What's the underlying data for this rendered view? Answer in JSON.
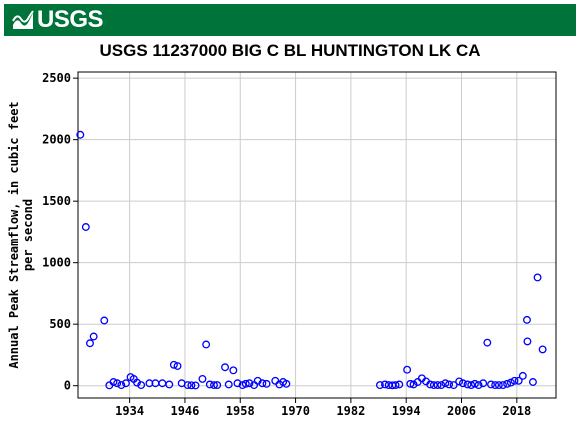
{
  "logo": {
    "text": "USGS"
  },
  "colors": {
    "banner": "#00733a",
    "marker": "#0000ff",
    "grid": "#cccccc"
  },
  "chart_data": {
    "type": "scatter",
    "title": "USGS 11237000 BIG C BL HUNTINGTON LK CA",
    "ylabel_line1": "Annual Peak Streamflow, in cubic feet",
    "ylabel_line2": "per second",
    "xlabel": "",
    "xlim": [
      1922.8,
      2026.5
    ],
    "ylim": [
      -100,
      2550
    ],
    "xticks": [
      1934,
      1946,
      1958,
      1970,
      1982,
      1994,
      2006,
      2018
    ],
    "xtick_labels": [
      "1934",
      "1946",
      "1958",
      "1970",
      "1982",
      "1994",
      "2006",
      "2018"
    ],
    "yticks": [
      0,
      500,
      1000,
      1500,
      2000,
      2500
    ],
    "ytick_labels": [
      "0",
      "500",
      "1000",
      "1500",
      "2000",
      "2500"
    ],
    "grid": true,
    "marker": "open-circle",
    "points": [
      {
        "x": 1923.3,
        "y": 2040
      },
      {
        "x": 1924.5,
        "y": 1290
      },
      {
        "x": 1925.4,
        "y": 345
      },
      {
        "x": 1926.2,
        "y": 400
      },
      {
        "x": 1928.5,
        "y": 530
      },
      {
        "x": 1929.6,
        "y": 3
      },
      {
        "x": 1930.5,
        "y": 30
      },
      {
        "x": 1931.3,
        "y": 20
      },
      {
        "x": 1932.2,
        "y": 5
      },
      {
        "x": 1933.2,
        "y": 20
      },
      {
        "x": 1934.2,
        "y": 70
      },
      {
        "x": 1934.9,
        "y": 55
      },
      {
        "x": 1935.6,
        "y": 25
      },
      {
        "x": 1936.5,
        "y": 5
      },
      {
        "x": 1938.3,
        "y": 20
      },
      {
        "x": 1939.6,
        "y": 20
      },
      {
        "x": 1941.1,
        "y": 20
      },
      {
        "x": 1942.6,
        "y": 10
      },
      {
        "x": 1943.6,
        "y": 170
      },
      {
        "x": 1944.4,
        "y": 160
      },
      {
        "x": 1945.3,
        "y": 20
      },
      {
        "x": 1946.6,
        "y": 5
      },
      {
        "x": 1947.4,
        "y": 3
      },
      {
        "x": 1948.3,
        "y": 2
      },
      {
        "x": 1949.8,
        "y": 55
      },
      {
        "x": 1950.6,
        "y": 335
      },
      {
        "x": 1951.4,
        "y": 10
      },
      {
        "x": 1952.3,
        "y": 5
      },
      {
        "x": 1953.0,
        "y": 5
      },
      {
        "x": 1954.7,
        "y": 150
      },
      {
        "x": 1955.5,
        "y": 10
      },
      {
        "x": 1956.5,
        "y": 125
      },
      {
        "x": 1957.4,
        "y": 20
      },
      {
        "x": 1958.5,
        "y": 5
      },
      {
        "x": 1959.2,
        "y": 15
      },
      {
        "x": 1960.0,
        "y": 20
      },
      {
        "x": 1961.0,
        "y": 5
      },
      {
        "x": 1961.8,
        "y": 40
      },
      {
        "x": 1962.8,
        "y": 20
      },
      {
        "x": 1963.7,
        "y": 15
      },
      {
        "x": 1965.6,
        "y": 40
      },
      {
        "x": 1966.5,
        "y": 10
      },
      {
        "x": 1967.3,
        "y": 30
      },
      {
        "x": 1968.0,
        "y": 15
      },
      {
        "x": 1988.3,
        "y": 5
      },
      {
        "x": 1989.4,
        "y": 10
      },
      {
        "x": 1990.2,
        "y": 5
      },
      {
        "x": 1991.0,
        "y": 3
      },
      {
        "x": 1991.7,
        "y": 5
      },
      {
        "x": 1992.5,
        "y": 10
      },
      {
        "x": 1994.2,
        "y": 130
      },
      {
        "x": 1994.9,
        "y": 15
      },
      {
        "x": 1995.6,
        "y": 10
      },
      {
        "x": 1996.5,
        "y": 30
      },
      {
        "x": 1997.4,
        "y": 60
      },
      {
        "x": 1998.3,
        "y": 35
      },
      {
        "x": 1999.2,
        "y": 10
      },
      {
        "x": 2000.0,
        "y": 5
      },
      {
        "x": 2000.8,
        "y": 5
      },
      {
        "x": 2001.6,
        "y": 5
      },
      {
        "x": 2002.5,
        "y": 20
      },
      {
        "x": 2003.3,
        "y": 10
      },
      {
        "x": 2004.3,
        "y": 5
      },
      {
        "x": 2005.5,
        "y": 35
      },
      {
        "x": 2006.3,
        "y": 20
      },
      {
        "x": 2007.3,
        "y": 10
      },
      {
        "x": 2008.1,
        "y": 5
      },
      {
        "x": 2008.9,
        "y": 15
      },
      {
        "x": 2009.7,
        "y": 5
      },
      {
        "x": 2010.7,
        "y": 20
      },
      {
        "x": 2011.6,
        "y": 350
      },
      {
        "x": 2012.4,
        "y": 10
      },
      {
        "x": 2013.3,
        "y": 5
      },
      {
        "x": 2014.1,
        "y": 5
      },
      {
        "x": 2015.0,
        "y": 5
      },
      {
        "x": 2015.9,
        "y": 15
      },
      {
        "x": 2016.7,
        "y": 25
      },
      {
        "x": 2017.5,
        "y": 40
      },
      {
        "x": 2018.4,
        "y": 40
      },
      {
        "x": 2019.3,
        "y": 80
      },
      {
        "x": 2020.2,
        "y": 535
      },
      {
        "x": 2020.3,
        "y": 360
      },
      {
        "x": 2021.5,
        "y": 30
      },
      {
        "x": 2022.5,
        "y": 880
      },
      {
        "x": 2023.6,
        "y": 295
      }
    ]
  }
}
